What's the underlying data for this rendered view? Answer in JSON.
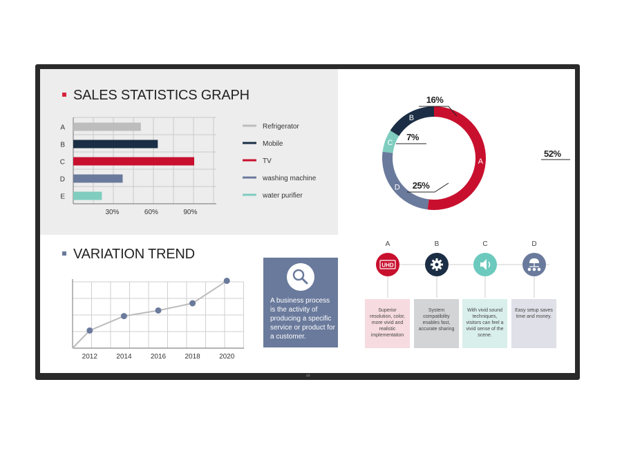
{
  "sales": {
    "title": "SALES STATISTICS GRAPH",
    "bullet_color": "#d6243c"
  },
  "trend": {
    "title": "VARIATION TREND",
    "bullet_color": "#6a7a9c"
  },
  "infobox": {
    "text": "A business process is the activity of producing a specific service or product for a customer.",
    "icon": "magnifier-icon"
  },
  "features": [
    {
      "label": "A",
      "icon": "uhd-icon",
      "icon_text": "UHD",
      "color": "#c8102e",
      "box_color": "#f6dbe0",
      "text": "Superior resolution, color, more vivid and realistic implementation"
    },
    {
      "label": "B",
      "icon": "gear-icon",
      "color": "#1b2e45",
      "box_color": "#d3d4d6",
      "text": "System compatibility enables fast, accurate sharing"
    },
    {
      "label": "C",
      "icon": "speaker-icon",
      "color": "#6cc9bd",
      "box_color": "#d9efec",
      "text": "With vivid sound techniques, visitors can feel a vivid sense of the scene."
    },
    {
      "label": "D",
      "icon": "network-icon",
      "color": "#6a7a9c",
      "box_color": "#dfe0e8",
      "text": "Easy setup saves time and money."
    }
  ],
  "chart_data": [
    {
      "type": "bar",
      "orientation": "horizontal",
      "title": "SALES STATISTICS GRAPH",
      "categories": [
        "A",
        "B",
        "C",
        "D",
        "E"
      ],
      "values": [
        52,
        65,
        93,
        38,
        22
      ],
      "colors": [
        "#bdbdbd",
        "#1b2e45",
        "#c8102e",
        "#6a7a9c",
        "#7fcdbf"
      ],
      "x_ticks": [
        "30%",
        "60%",
        "90%"
      ],
      "x_tick_values": [
        30,
        60,
        90
      ],
      "xlim": [
        0,
        110
      ],
      "grid": true,
      "legend": [
        {
          "name": "Refrigerator",
          "color": "#bdbdbd"
        },
        {
          "name": "Mobile",
          "color": "#1b2e45"
        },
        {
          "name": "TV",
          "color": "#c8102e"
        },
        {
          "name": "washing machine",
          "color": "#6a7a9c"
        },
        {
          "name": "water purifier",
          "color": "#7fcdbf"
        }
      ],
      "legend_position": "right"
    },
    {
      "type": "pie",
      "style": "donut",
      "slices": [
        {
          "label": "A",
          "value": 52,
          "display": "52%",
          "color": "#c8102e"
        },
        {
          "label": "D",
          "value": 25,
          "display": "25%",
          "color": "#6a7a9c"
        },
        {
          "label": "C",
          "value": 7,
          "display": "7%",
          "color": "#7fcdbf"
        },
        {
          "label": "B",
          "value": 16,
          "display": "16%",
          "color": "#1b2e45"
        }
      ]
    },
    {
      "type": "line",
      "title": "VARIATION TREND",
      "x_ticks": [
        "2012",
        "2014",
        "2016",
        "2018",
        "2020"
      ],
      "x": [
        2012,
        2014,
        2016,
        2018,
        2020
      ],
      "values": [
        22,
        40,
        47,
        56,
        84
      ],
      "xlim": [
        2011,
        2021
      ],
      "ylim": [
        0,
        100
      ],
      "line_color": "#bbbbbb",
      "point_color": "#6a7a9c",
      "grid": true
    }
  ]
}
